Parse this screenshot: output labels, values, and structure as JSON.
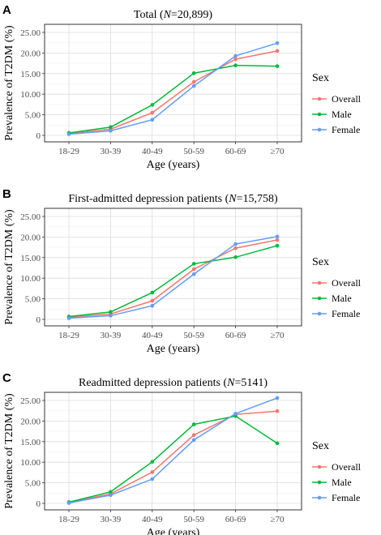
{
  "chart_data": [
    {
      "panel": "A",
      "type": "line",
      "title_prefix": "Total (",
      "title_italic": "N",
      "title_suffix": "=20,899)",
      "xlabel": "Age (years)",
      "ylabel": "Prevalence of T2DM (%)",
      "categories": [
        "18-29",
        "30-39",
        "40-49",
        "50-59",
        "60-69",
        "≥70"
      ],
      "ylim": [
        0,
        25
      ],
      "yticks": [
        "0",
        "5.00",
        "10.00",
        "15.00",
        "20.00",
        "25.00"
      ],
      "grid": true,
      "series": [
        {
          "name": "Overall",
          "color": "#F8766D",
          "values": [
            0.5,
            1.5,
            5.5,
            13.0,
            18.5,
            20.5
          ]
        },
        {
          "name": "Male",
          "color": "#00BA38",
          "values": [
            0.6,
            2.0,
            7.4,
            15.1,
            17.0,
            16.8
          ]
        },
        {
          "name": "Female",
          "color": "#619CFF",
          "values": [
            0.3,
            1.1,
            3.8,
            12.0,
            19.3,
            22.4
          ]
        }
      ],
      "legend_title": "Sex",
      "legend_position": "right"
    },
    {
      "panel": "B",
      "type": "line",
      "title_prefix": "First-admitted depression patients (",
      "title_italic": "N",
      "title_suffix": "=15,758)",
      "xlabel": "Age (years)",
      "ylabel": "Prevalence of T2DM (%)",
      "categories": [
        "18-29",
        "30-39",
        "40-49",
        "50-59",
        "60-69",
        "≥70"
      ],
      "ylim": [
        0,
        25
      ],
      "yticks": [
        "0",
        "5.00",
        "10.00",
        "15.00",
        "20.00",
        "25.00"
      ],
      "grid": true,
      "series": [
        {
          "name": "Overall",
          "color": "#F8766D",
          "values": [
            0.5,
            1.3,
            4.5,
            12.2,
            17.3,
            19.3
          ]
        },
        {
          "name": "Male",
          "color": "#00BA38",
          "values": [
            0.7,
            1.8,
            6.5,
            13.5,
            15.1,
            17.9
          ]
        },
        {
          "name": "Female",
          "color": "#619CFF",
          "values": [
            0.3,
            0.9,
            3.3,
            11.0,
            18.3,
            20.1
          ]
        }
      ],
      "legend_title": "Sex",
      "legend_position": "right"
    },
    {
      "panel": "C",
      "type": "line",
      "title_prefix": "Readmitted depression patients (",
      "title_italic": "N",
      "title_suffix": "=5141)",
      "xlabel": "Age (years)",
      "ylabel": "Prevalence of T2DM (%)",
      "categories": [
        "18-29",
        "30-39",
        "40-49",
        "50-59",
        "60-69",
        "≥70"
      ],
      "ylim": [
        0,
        25
      ],
      "yticks": [
        "0",
        "5.00",
        "10.00",
        "15.00",
        "20.00",
        "25.00"
      ],
      "grid": true,
      "series": [
        {
          "name": "Overall",
          "color": "#F8766D",
          "values": [
            0.2,
            2.3,
            7.6,
            16.6,
            21.6,
            22.4
          ]
        },
        {
          "name": "Male",
          "color": "#00BA38",
          "values": [
            0.3,
            2.8,
            10.1,
            19.2,
            21.2,
            14.6
          ]
        },
        {
          "name": "Female",
          "color": "#619CFF",
          "values": [
            0.1,
            2.0,
            5.9,
            15.4,
            21.8,
            25.6
          ]
        }
      ],
      "legend_title": "Sex",
      "legend_position": "right"
    }
  ]
}
